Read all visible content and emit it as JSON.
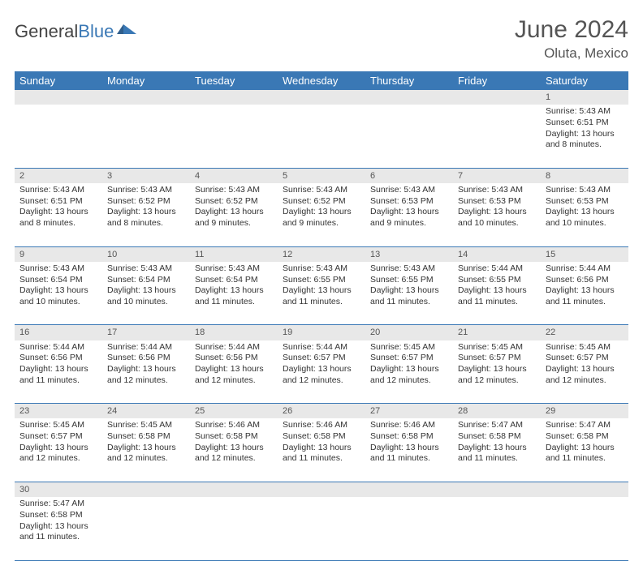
{
  "logo": {
    "text1": "General",
    "text2": "Blue"
  },
  "title": "June 2024",
  "subtitle": "Oluta, Mexico",
  "colors": {
    "header_bg": "#3a78b5",
    "header_fg": "#ffffff",
    "daynum_bg": "#e8e8e8",
    "rule": "#3a78b5",
    "text": "#333333"
  },
  "weekdays": [
    "Sunday",
    "Monday",
    "Tuesday",
    "Wednesday",
    "Thursday",
    "Friday",
    "Saturday"
  ],
  "weeks": [
    [
      null,
      null,
      null,
      null,
      null,
      null,
      {
        "n": "1",
        "sr": "5:43 AM",
        "ss": "6:51 PM",
        "dl": "13 hours and 8 minutes."
      }
    ],
    [
      {
        "n": "2",
        "sr": "5:43 AM",
        "ss": "6:51 PM",
        "dl": "13 hours and 8 minutes."
      },
      {
        "n": "3",
        "sr": "5:43 AM",
        "ss": "6:52 PM",
        "dl": "13 hours and 8 minutes."
      },
      {
        "n": "4",
        "sr": "5:43 AM",
        "ss": "6:52 PM",
        "dl": "13 hours and 9 minutes."
      },
      {
        "n": "5",
        "sr": "5:43 AM",
        "ss": "6:52 PM",
        "dl": "13 hours and 9 minutes."
      },
      {
        "n": "6",
        "sr": "5:43 AM",
        "ss": "6:53 PM",
        "dl": "13 hours and 9 minutes."
      },
      {
        "n": "7",
        "sr": "5:43 AM",
        "ss": "6:53 PM",
        "dl": "13 hours and 10 minutes."
      },
      {
        "n": "8",
        "sr": "5:43 AM",
        "ss": "6:53 PM",
        "dl": "13 hours and 10 minutes."
      }
    ],
    [
      {
        "n": "9",
        "sr": "5:43 AM",
        "ss": "6:54 PM",
        "dl": "13 hours and 10 minutes."
      },
      {
        "n": "10",
        "sr": "5:43 AM",
        "ss": "6:54 PM",
        "dl": "13 hours and 10 minutes."
      },
      {
        "n": "11",
        "sr": "5:43 AM",
        "ss": "6:54 PM",
        "dl": "13 hours and 11 minutes."
      },
      {
        "n": "12",
        "sr": "5:43 AM",
        "ss": "6:55 PM",
        "dl": "13 hours and 11 minutes."
      },
      {
        "n": "13",
        "sr": "5:43 AM",
        "ss": "6:55 PM",
        "dl": "13 hours and 11 minutes."
      },
      {
        "n": "14",
        "sr": "5:44 AM",
        "ss": "6:55 PM",
        "dl": "13 hours and 11 minutes."
      },
      {
        "n": "15",
        "sr": "5:44 AM",
        "ss": "6:56 PM",
        "dl": "13 hours and 11 minutes."
      }
    ],
    [
      {
        "n": "16",
        "sr": "5:44 AM",
        "ss": "6:56 PM",
        "dl": "13 hours and 11 minutes."
      },
      {
        "n": "17",
        "sr": "5:44 AM",
        "ss": "6:56 PM",
        "dl": "13 hours and 12 minutes."
      },
      {
        "n": "18",
        "sr": "5:44 AM",
        "ss": "6:56 PM",
        "dl": "13 hours and 12 minutes."
      },
      {
        "n": "19",
        "sr": "5:44 AM",
        "ss": "6:57 PM",
        "dl": "13 hours and 12 minutes."
      },
      {
        "n": "20",
        "sr": "5:45 AM",
        "ss": "6:57 PM",
        "dl": "13 hours and 12 minutes."
      },
      {
        "n": "21",
        "sr": "5:45 AM",
        "ss": "6:57 PM",
        "dl": "13 hours and 12 minutes."
      },
      {
        "n": "22",
        "sr": "5:45 AM",
        "ss": "6:57 PM",
        "dl": "13 hours and 12 minutes."
      }
    ],
    [
      {
        "n": "23",
        "sr": "5:45 AM",
        "ss": "6:57 PM",
        "dl": "13 hours and 12 minutes."
      },
      {
        "n": "24",
        "sr": "5:45 AM",
        "ss": "6:58 PM",
        "dl": "13 hours and 12 minutes."
      },
      {
        "n": "25",
        "sr": "5:46 AM",
        "ss": "6:58 PM",
        "dl": "13 hours and 12 minutes."
      },
      {
        "n": "26",
        "sr": "5:46 AM",
        "ss": "6:58 PM",
        "dl": "13 hours and 11 minutes."
      },
      {
        "n": "27",
        "sr": "5:46 AM",
        "ss": "6:58 PM",
        "dl": "13 hours and 11 minutes."
      },
      {
        "n": "28",
        "sr": "5:47 AM",
        "ss": "6:58 PM",
        "dl": "13 hours and 11 minutes."
      },
      {
        "n": "29",
        "sr": "5:47 AM",
        "ss": "6:58 PM",
        "dl": "13 hours and 11 minutes."
      }
    ],
    [
      {
        "n": "30",
        "sr": "5:47 AM",
        "ss": "6:58 PM",
        "dl": "13 hours and 11 minutes."
      },
      null,
      null,
      null,
      null,
      null,
      null
    ]
  ],
  "labels": {
    "sunrise": "Sunrise: ",
    "sunset": "Sunset: ",
    "daylight": "Daylight: "
  }
}
